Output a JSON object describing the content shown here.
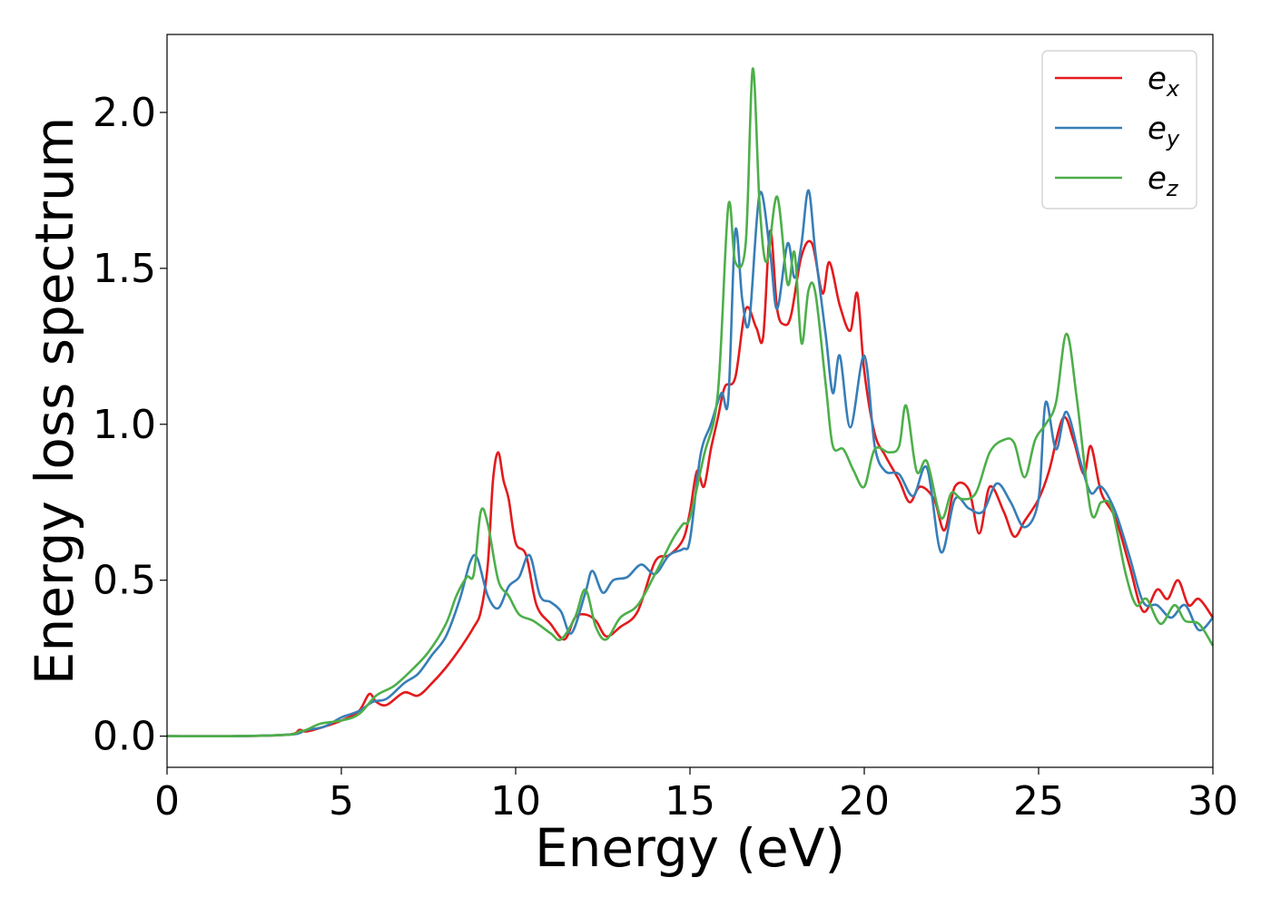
{
  "chart_data": {
    "type": "line",
    "xlabel": "Energy (eV)",
    "ylabel": "Energy loss spectrum",
    "xlim": [
      0,
      30
    ],
    "ylim": [
      -0.1,
      2.25
    ],
    "xticks": [
      0,
      5,
      10,
      15,
      20,
      25,
      30
    ],
    "xtick_labels": [
      "0",
      "5",
      "10",
      "15",
      "20",
      "25",
      "30"
    ],
    "yticks": [
      0.0,
      0.5,
      1.0,
      1.5,
      2.0
    ],
    "ytick_labels": [
      "0.0",
      "0.5",
      "1.0",
      "1.5",
      "2.0"
    ],
    "grid": false,
    "legend_position": "top-right",
    "series": [
      {
        "name": "e_x",
        "legend_main": "e",
        "legend_sub": "x",
        "color": "#e41a1c",
        "points": [
          [
            0,
            0.0
          ],
          [
            2,
            0.0
          ],
          [
            3.5,
            0.005
          ],
          [
            3.8,
            0.02
          ],
          [
            4.0,
            0.015
          ],
          [
            4.5,
            0.03
          ],
          [
            5.0,
            0.05
          ],
          [
            5.5,
            0.08
          ],
          [
            5.8,
            0.135
          ],
          [
            6.0,
            0.11
          ],
          [
            6.3,
            0.1
          ],
          [
            6.8,
            0.14
          ],
          [
            7.2,
            0.13
          ],
          [
            7.6,
            0.17
          ],
          [
            8.0,
            0.22
          ],
          [
            8.4,
            0.28
          ],
          [
            8.8,
            0.35
          ],
          [
            9.0,
            0.4
          ],
          [
            9.2,
            0.55
          ],
          [
            9.35,
            0.82
          ],
          [
            9.5,
            0.91
          ],
          [
            9.65,
            0.82
          ],
          [
            9.8,
            0.76
          ],
          [
            10.0,
            0.62
          ],
          [
            10.3,
            0.58
          ],
          [
            10.6,
            0.42
          ],
          [
            11.0,
            0.36
          ],
          [
            11.4,
            0.31
          ],
          [
            11.7,
            0.38
          ],
          [
            12.0,
            0.39
          ],
          [
            12.3,
            0.37
          ],
          [
            12.6,
            0.32
          ],
          [
            13.0,
            0.35
          ],
          [
            13.5,
            0.4
          ],
          [
            14.0,
            0.56
          ],
          [
            14.4,
            0.58
          ],
          [
            14.8,
            0.63
          ],
          [
            15.0,
            0.72
          ],
          [
            15.2,
            0.85
          ],
          [
            15.4,
            0.8
          ],
          [
            15.6,
            0.92
          ],
          [
            15.8,
            1.02
          ],
          [
            16.0,
            1.12
          ],
          [
            16.3,
            1.15
          ],
          [
            16.6,
            1.37
          ],
          [
            16.9,
            1.31
          ],
          [
            17.1,
            1.28
          ],
          [
            17.3,
            1.62
          ],
          [
            17.5,
            1.37
          ],
          [
            17.7,
            1.32
          ],
          [
            17.9,
            1.35
          ],
          [
            18.2,
            1.54
          ],
          [
            18.5,
            1.58
          ],
          [
            18.8,
            1.42
          ],
          [
            19.0,
            1.52
          ],
          [
            19.3,
            1.38
          ],
          [
            19.6,
            1.3
          ],
          [
            19.8,
            1.42
          ],
          [
            20.0,
            1.17
          ],
          [
            20.3,
            0.97
          ],
          [
            20.6,
            0.9
          ],
          [
            21.0,
            0.82
          ],
          [
            21.3,
            0.75
          ],
          [
            21.6,
            0.8
          ],
          [
            22.0,
            0.76
          ],
          [
            22.3,
            0.66
          ],
          [
            22.6,
            0.8
          ],
          [
            23.0,
            0.79
          ],
          [
            23.3,
            0.65
          ],
          [
            23.6,
            0.8
          ],
          [
            24.0,
            0.72
          ],
          [
            24.3,
            0.64
          ],
          [
            24.6,
            0.69
          ],
          [
            25.0,
            0.76
          ],
          [
            25.3,
            0.85
          ],
          [
            25.7,
            1.02
          ],
          [
            26.0,
            0.95
          ],
          [
            26.3,
            0.84
          ],
          [
            26.5,
            0.93
          ],
          [
            26.8,
            0.78
          ],
          [
            27.2,
            0.7
          ],
          [
            27.6,
            0.55
          ],
          [
            28.0,
            0.4
          ],
          [
            28.4,
            0.47
          ],
          [
            28.7,
            0.44
          ],
          [
            29.0,
            0.5
          ],
          [
            29.3,
            0.42
          ],
          [
            29.6,
            0.44
          ],
          [
            30.0,
            0.38
          ]
        ]
      },
      {
        "name": "e_y",
        "legend_main": "e",
        "legend_sub": "y",
        "color": "#377eb8",
        "points": [
          [
            0,
            0.0
          ],
          [
            2,
            0.0
          ],
          [
            3.5,
            0.005
          ],
          [
            3.8,
            0.01
          ],
          [
            4.0,
            0.02
          ],
          [
            4.5,
            0.03
          ],
          [
            5.0,
            0.06
          ],
          [
            5.5,
            0.08
          ],
          [
            5.9,
            0.11
          ],
          [
            6.3,
            0.12
          ],
          [
            6.8,
            0.17
          ],
          [
            7.2,
            0.2
          ],
          [
            7.6,
            0.26
          ],
          [
            8.0,
            0.32
          ],
          [
            8.4,
            0.44
          ],
          [
            8.7,
            0.56
          ],
          [
            8.9,
            0.57
          ],
          [
            9.2,
            0.45
          ],
          [
            9.5,
            0.41
          ],
          [
            9.8,
            0.48
          ],
          [
            10.1,
            0.51
          ],
          [
            10.4,
            0.58
          ],
          [
            10.7,
            0.45
          ],
          [
            11.0,
            0.43
          ],
          [
            11.3,
            0.4
          ],
          [
            11.6,
            0.33
          ],
          [
            12.0,
            0.46
          ],
          [
            12.2,
            0.53
          ],
          [
            12.5,
            0.46
          ],
          [
            12.8,
            0.5
          ],
          [
            13.2,
            0.51
          ],
          [
            13.6,
            0.55
          ],
          [
            14.0,
            0.52
          ],
          [
            14.4,
            0.58
          ],
          [
            14.8,
            0.6
          ],
          [
            15.0,
            0.63
          ],
          [
            15.3,
            0.9
          ],
          [
            15.6,
            1.0
          ],
          [
            15.9,
            1.1
          ],
          [
            16.1,
            1.08
          ],
          [
            16.3,
            1.62
          ],
          [
            16.5,
            1.4
          ],
          [
            16.7,
            1.33
          ],
          [
            17.0,
            1.74
          ],
          [
            17.3,
            1.55
          ],
          [
            17.5,
            1.37
          ],
          [
            17.8,
            1.58
          ],
          [
            18.0,
            1.47
          ],
          [
            18.2,
            1.58
          ],
          [
            18.4,
            1.75
          ],
          [
            18.6,
            1.55
          ],
          [
            18.9,
            1.28
          ],
          [
            19.1,
            1.1
          ],
          [
            19.3,
            1.22
          ],
          [
            19.6,
            0.99
          ],
          [
            20.0,
            1.22
          ],
          [
            20.3,
            0.93
          ],
          [
            20.6,
            0.85
          ],
          [
            21.0,
            0.84
          ],
          [
            21.4,
            0.77
          ],
          [
            21.8,
            0.86
          ],
          [
            22.2,
            0.59
          ],
          [
            22.6,
            0.76
          ],
          [
            23.0,
            0.73
          ],
          [
            23.4,
            0.72
          ],
          [
            23.8,
            0.81
          ],
          [
            24.2,
            0.75
          ],
          [
            24.6,
            0.67
          ],
          [
            25.0,
            0.76
          ],
          [
            25.2,
            1.07
          ],
          [
            25.5,
            0.92
          ],
          [
            25.8,
            1.04
          ],
          [
            26.2,
            0.88
          ],
          [
            26.5,
            0.78
          ],
          [
            26.8,
            0.8
          ],
          [
            27.2,
            0.72
          ],
          [
            27.6,
            0.58
          ],
          [
            28.0,
            0.43
          ],
          [
            28.4,
            0.42
          ],
          [
            28.8,
            0.38
          ],
          [
            29.2,
            0.42
          ],
          [
            29.6,
            0.34
          ],
          [
            30.0,
            0.38
          ]
        ]
      },
      {
        "name": "e_z",
        "legend_main": "e",
        "legend_sub": "z",
        "color": "#4daf4a",
        "points": [
          [
            0,
            0.0
          ],
          [
            2,
            0.0
          ],
          [
            3.5,
            0.005
          ],
          [
            3.8,
            0.015
          ],
          [
            4.0,
            0.02
          ],
          [
            4.4,
            0.04
          ],
          [
            5.0,
            0.05
          ],
          [
            5.5,
            0.07
          ],
          [
            6.0,
            0.13
          ],
          [
            6.5,
            0.16
          ],
          [
            7.0,
            0.21
          ],
          [
            7.5,
            0.27
          ],
          [
            8.0,
            0.36
          ],
          [
            8.3,
            0.45
          ],
          [
            8.6,
            0.51
          ],
          [
            8.8,
            0.52
          ],
          [
            9.0,
            0.72
          ],
          [
            9.2,
            0.68
          ],
          [
            9.5,
            0.5
          ],
          [
            9.8,
            0.45
          ],
          [
            10.1,
            0.39
          ],
          [
            10.5,
            0.37
          ],
          [
            11.0,
            0.33
          ],
          [
            11.3,
            0.31
          ],
          [
            11.7,
            0.38
          ],
          [
            12.0,
            0.47
          ],
          [
            12.3,
            0.35
          ],
          [
            12.6,
            0.31
          ],
          [
            13.0,
            0.38
          ],
          [
            13.5,
            0.42
          ],
          [
            14.0,
            0.52
          ],
          [
            14.5,
            0.63
          ],
          [
            14.8,
            0.68
          ],
          [
            15.0,
            0.7
          ],
          [
            15.4,
            0.9
          ],
          [
            15.8,
            1.1
          ],
          [
            16.1,
            1.7
          ],
          [
            16.3,
            1.52
          ],
          [
            16.6,
            1.58
          ],
          [
            16.8,
            2.14
          ],
          [
            17.0,
            1.7
          ],
          [
            17.2,
            1.52
          ],
          [
            17.5,
            1.73
          ],
          [
            17.8,
            1.45
          ],
          [
            18.0,
            1.55
          ],
          [
            18.2,
            1.26
          ],
          [
            18.4,
            1.43
          ],
          [
            18.6,
            1.42
          ],
          [
            18.9,
            1.12
          ],
          [
            19.1,
            0.93
          ],
          [
            19.4,
            0.92
          ],
          [
            19.7,
            0.85
          ],
          [
            20.0,
            0.8
          ],
          [
            20.3,
            0.92
          ],
          [
            20.7,
            0.91
          ],
          [
            21.0,
            0.93
          ],
          [
            21.2,
            1.06
          ],
          [
            21.5,
            0.85
          ],
          [
            21.8,
            0.88
          ],
          [
            22.2,
            0.7
          ],
          [
            22.5,
            0.78
          ],
          [
            22.8,
            0.76
          ],
          [
            23.2,
            0.78
          ],
          [
            23.6,
            0.91
          ],
          [
            24.0,
            0.95
          ],
          [
            24.3,
            0.94
          ],
          [
            24.6,
            0.83
          ],
          [
            24.9,
            0.95
          ],
          [
            25.2,
            1.0
          ],
          [
            25.5,
            1.07
          ],
          [
            25.8,
            1.29
          ],
          [
            26.1,
            1.08
          ],
          [
            26.5,
            0.72
          ],
          [
            26.8,
            0.75
          ],
          [
            27.1,
            0.73
          ],
          [
            27.5,
            0.52
          ],
          [
            27.8,
            0.42
          ],
          [
            28.1,
            0.44
          ],
          [
            28.5,
            0.36
          ],
          [
            28.9,
            0.42
          ],
          [
            29.2,
            0.37
          ],
          [
            29.6,
            0.36
          ],
          [
            30.0,
            0.29
          ]
        ]
      }
    ]
  }
}
